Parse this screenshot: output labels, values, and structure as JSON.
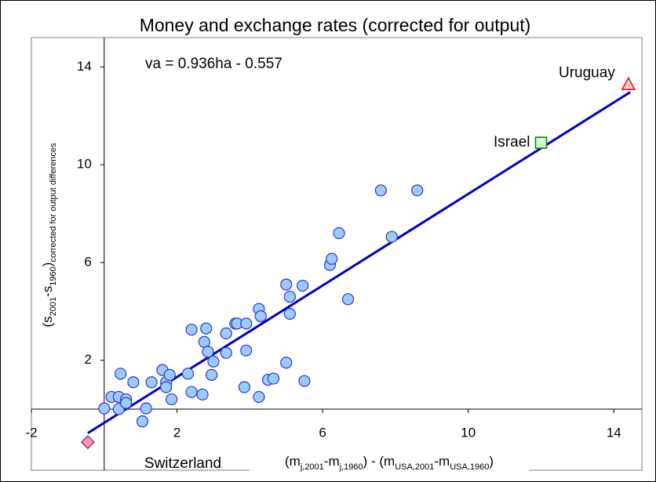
{
  "chart_data": {
    "type": "scatter",
    "title": "Money and exchange rates (corrected for output)",
    "annotation": "va = 0.936ha - 0.557",
    "xlabel_parts": [
      {
        "text": "(m"
      },
      {
        "sub": "j,2001"
      },
      {
        "text": "-m"
      },
      {
        "sub": "j,1960"
      },
      {
        "text": ") - (m"
      },
      {
        "sub": "USA,2001"
      },
      {
        "text": "-m"
      },
      {
        "sub": "USA,1960"
      },
      {
        "text": ")"
      }
    ],
    "ylabel_parts": [
      {
        "text": "(s"
      },
      {
        "sub": "2001"
      },
      {
        "text": "-s"
      },
      {
        "sub": "1960"
      },
      {
        "text": ")"
      },
      {
        "sub": "corrected for output differences"
      }
    ],
    "xlim": [
      -2,
      14.77
    ],
    "ylim": [
      -2.5,
      15.2
    ],
    "xticks": [
      -2,
      2,
      6,
      10,
      14
    ],
    "yticks": [
      2,
      6,
      10,
      14
    ],
    "points": {
      "color": "#99ccff",
      "stroke": "#3333cc",
      "x": [
        0,
        0.2,
        0.4,
        0.45,
        0.4,
        0.6,
        0.6,
        0.8,
        1.05,
        1.15,
        1.3,
        1.6,
        1.7,
        1.7,
        1.8,
        1.85,
        2.3,
        2.4,
        2.4,
        2.7,
        2.75,
        2.8,
        2.85,
        2.95,
        3.0,
        3.35,
        3.35,
        3.6,
        3.65,
        3.85,
        3.9,
        3.9,
        4.25,
        4.25,
        4.3,
        4.5,
        4.65,
        5.0,
        5.0,
        5.1,
        5.1,
        5.45,
        5.5,
        6.2,
        6.25,
        6.45,
        6.7,
        7.6,
        7.9,
        8.6
      ],
      "values": [
        0.03,
        0.5,
        0.5,
        1.45,
        0,
        0.4,
        0.25,
        1.1,
        -0.5,
        0.03,
        1.1,
        1.6,
        1.1,
        0.9,
        1.4,
        0.4,
        1.45,
        3.25,
        0.7,
        0.6,
        2.75,
        3.3,
        2.35,
        1.4,
        1.95,
        2.3,
        3.1,
        3.5,
        3.5,
        0.9,
        2.4,
        3.5,
        0.5,
        4.1,
        3.8,
        1.2,
        1.25,
        1.9,
        5.1,
        3.9,
        4.6,
        5.05,
        1.15,
        5.9,
        6.15,
        7.2,
        4.5,
        8.95,
        7.05,
        8.95
      ]
    },
    "labeled_points": [
      {
        "label": "Uruguay",
        "x": 14.4,
        "y": 13.3,
        "marker": "triangle",
        "color": "#ffcccc",
        "stroke": "#ff0000"
      },
      {
        "label": "Israel",
        "x": 12.0,
        "y": 10.9,
        "marker": "square",
        "color": "#ccffcc",
        "stroke": "#008000"
      },
      {
        "label": "Switzerland",
        "x": -0.45,
        "y": -1.35,
        "marker": "diamond",
        "color": "#ff99cc",
        "stroke": "#993366"
      }
    ],
    "fit": {
      "x": [
        -0.45,
        14.45
      ],
      "values": [
        -0.98,
        12.97
      ],
      "color": "#0000cc"
    }
  }
}
